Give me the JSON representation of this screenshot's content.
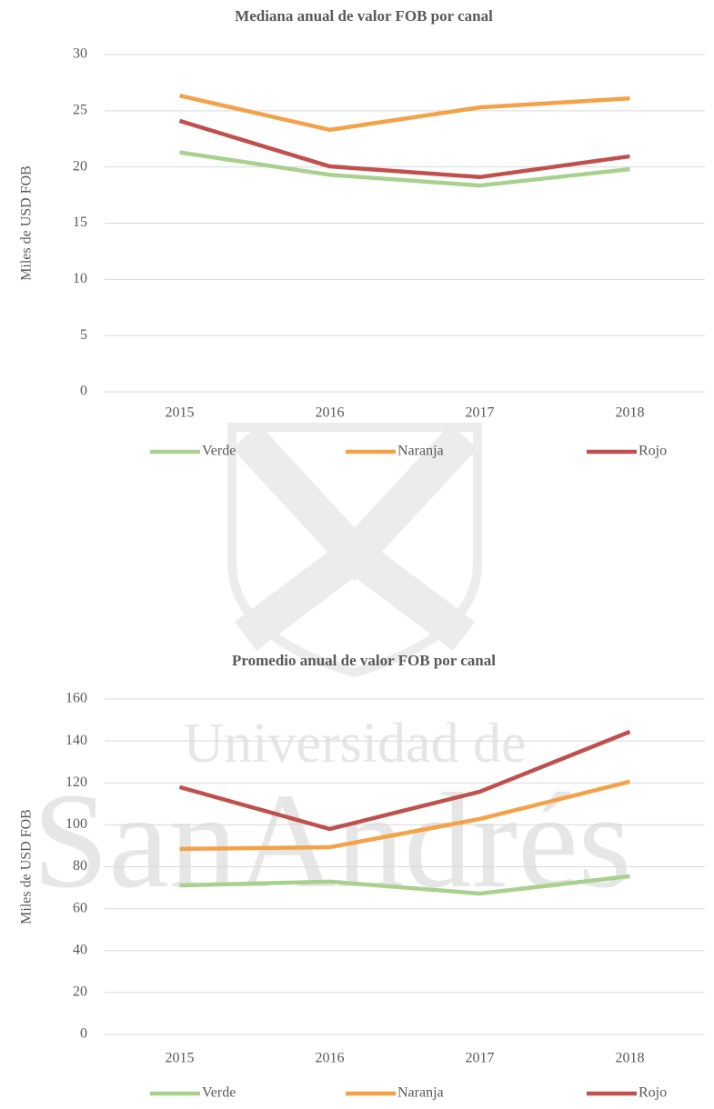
{
  "watermark": {
    "line1": "Universidad de",
    "line2": "SanAndrés"
  },
  "chart_data": [
    {
      "type": "line",
      "title": "Mediana anual de valor FOB por canal",
      "y_label": "Miles de USD FOB",
      "categories": [
        "2015",
        "2016",
        "2017",
        "2018"
      ],
      "series": [
        {
          "name": "Verde",
          "color": "#a9d18e",
          "values": [
            21.3,
            19.3,
            18.35,
            19.8
          ]
        },
        {
          "name": "Naranja",
          "color": "#f4a147",
          "values": [
            26.35,
            23.3,
            25.3,
            26.1
          ]
        },
        {
          "name": "Rojo",
          "color": "#c0504d",
          "values": [
            24.1,
            20.05,
            19.1,
            20.95
          ]
        }
      ],
      "ylim": [
        0,
        30
      ],
      "yticks": [
        0,
        5,
        10,
        15,
        20,
        25,
        30
      ],
      "grid": true,
      "legend": "bottom"
    },
    {
      "type": "line",
      "title": "Promedio anual de valor FOB por canal",
      "y_label": "Miles de USD FOB",
      "categories": [
        "2015",
        "2016",
        "2017",
        "2018"
      ],
      "series": [
        {
          "name": "Verde",
          "color": "#a9d18e",
          "values": [
            71.1,
            72.9,
            67.2,
            75.5
          ]
        },
        {
          "name": "Naranja",
          "color": "#f4a147",
          "values": [
            88.5,
            89.3,
            102.8,
            120.6
          ]
        },
        {
          "name": "Rojo",
          "color": "#c0504d",
          "values": [
            118,
            98,
            115.8,
            144.4
          ]
        }
      ],
      "ylim": [
        0,
        160
      ],
      "yticks": [
        0,
        20,
        40,
        60,
        80,
        100,
        120,
        140,
        160
      ],
      "grid": true,
      "legend": "bottom"
    }
  ]
}
